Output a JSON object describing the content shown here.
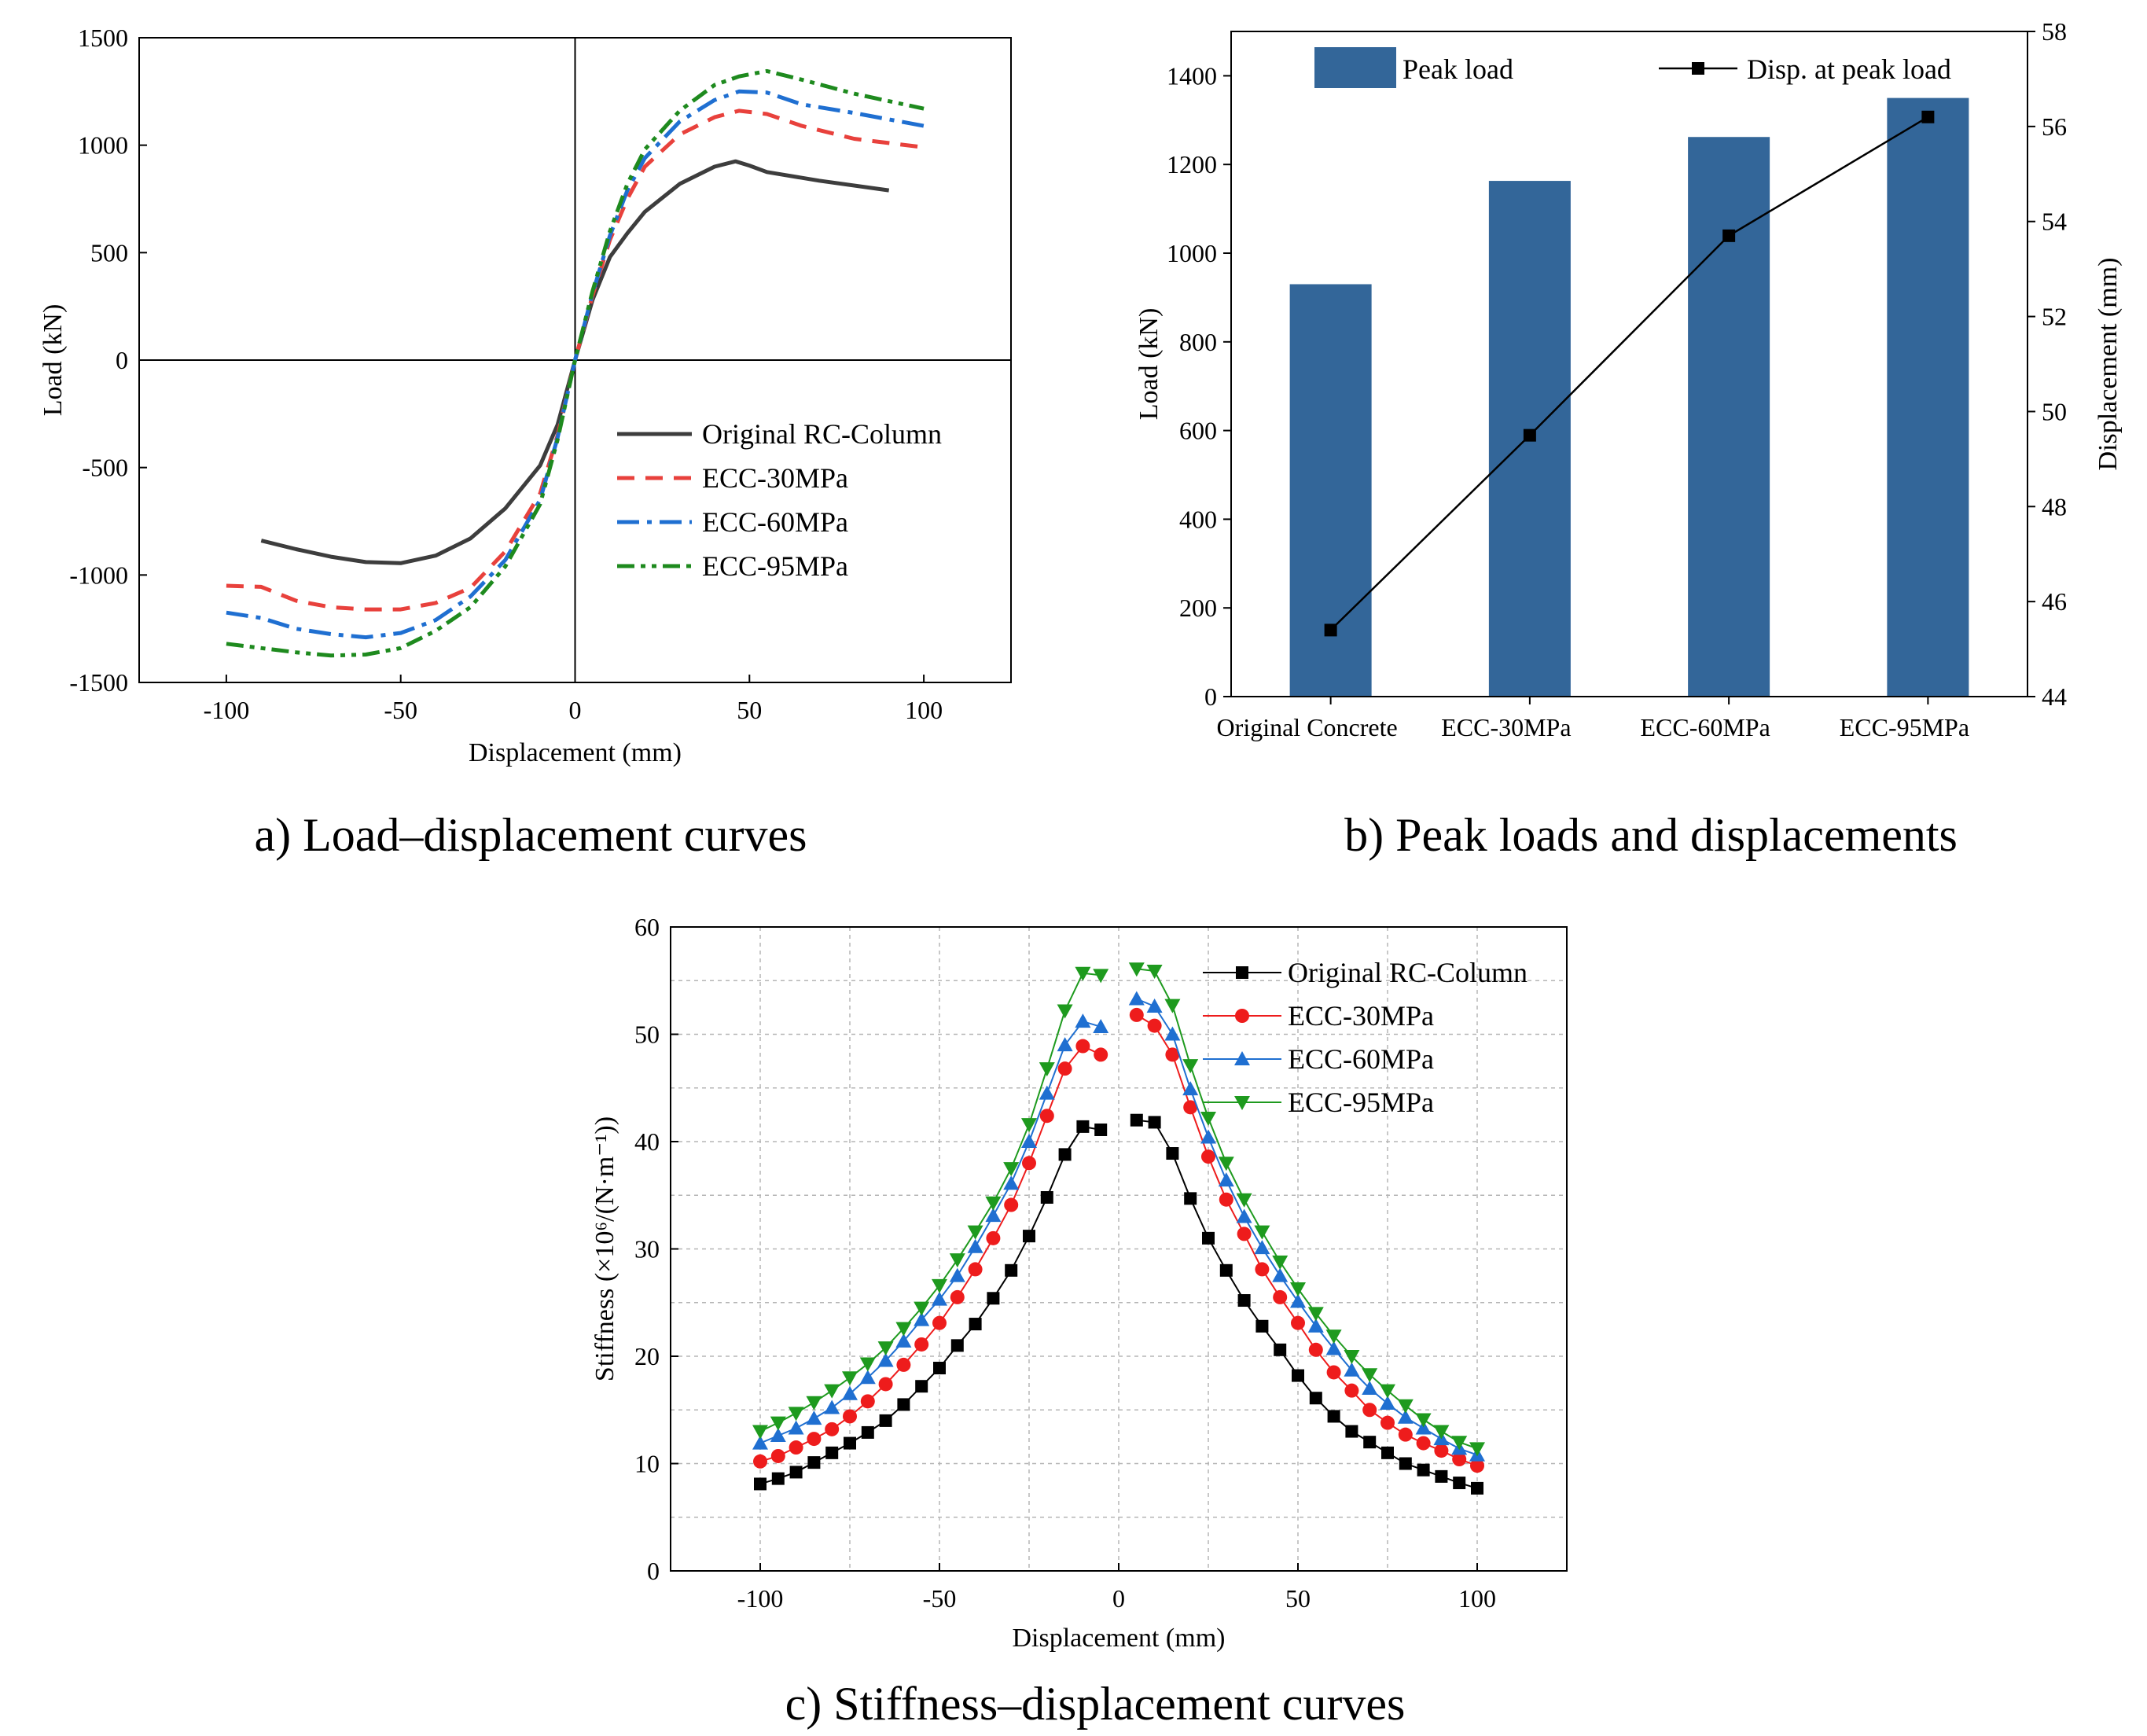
{
  "chart_data": [
    {
      "id": "a",
      "type": "line",
      "caption": "a) Load–displacement curves",
      "xlabel": "Displacement (mm)",
      "ylabel": "Load (kN)",
      "xlim": [
        -125,
        125
      ],
      "ylim": [
        -1500,
        1500
      ],
      "xticks": [
        -100,
        -50,
        0,
        50,
        100
      ],
      "yticks": [
        -1500,
        -1000,
        -500,
        0,
        500,
        1000,
        1500
      ],
      "grid": false,
      "legend_position": "bottom-right",
      "series": [
        {
          "name": "Original RC-Column",
          "color": "#3d3d3d",
          "dash": "solid",
          "points": [
            [
              -90,
              -840
            ],
            [
              -80,
              -880
            ],
            [
              -70,
              -915
            ],
            [
              -60,
              -940
            ],
            [
              -50,
              -945
            ],
            [
              -40,
              -910
            ],
            [
              -30,
              -830
            ],
            [
              -20,
              -690
            ],
            [
              -10,
              -490
            ],
            [
              -5,
              -300
            ],
            [
              0,
              0
            ],
            [
              5,
              280
            ],
            [
              10,
              480
            ],
            [
              15,
              590
            ],
            [
              20,
              690
            ],
            [
              30,
              820
            ],
            [
              40,
              900
            ],
            [
              46,
              925
            ],
            [
              50,
              905
            ],
            [
              55,
              875
            ],
            [
              70,
              835
            ],
            [
              90,
              790
            ]
          ]
        },
        {
          "name": "ECC-30MPa",
          "color": "#e8413c",
          "dash": "22,14",
          "points": [
            [
              -100,
              -1050
            ],
            [
              -90,
              -1055
            ],
            [
              -80,
              -1120
            ],
            [
              -70,
              -1150
            ],
            [
              -60,
              -1160
            ],
            [
              -50,
              -1160
            ],
            [
              -40,
              -1130
            ],
            [
              -30,
              -1060
            ],
            [
              -20,
              -890
            ],
            [
              -10,
              -620
            ],
            [
              -5,
              -350
            ],
            [
              0,
              0
            ],
            [
              5,
              300
            ],
            [
              10,
              560
            ],
            [
              15,
              750
            ],
            [
              20,
              900
            ],
            [
              30,
              1050
            ],
            [
              40,
              1130
            ],
            [
              47,
              1160
            ],
            [
              55,
              1145
            ],
            [
              65,
              1090
            ],
            [
              80,
              1030
            ],
            [
              100,
              990
            ]
          ]
        },
        {
          "name": "ECC-60MPa",
          "color": "#1f6fd1",
          "dash": "28,10,6,10",
          "points": [
            [
              -100,
              -1175
            ],
            [
              -90,
              -1200
            ],
            [
              -80,
              -1250
            ],
            [
              -70,
              -1275
            ],
            [
              -60,
              -1290
            ],
            [
              -50,
              -1270
            ],
            [
              -40,
              -1210
            ],
            [
              -30,
              -1100
            ],
            [
              -20,
              -930
            ],
            [
              -10,
              -650
            ],
            [
              -5,
              -360
            ],
            [
              0,
              0
            ],
            [
              5,
              310
            ],
            [
              10,
              580
            ],
            [
              15,
              790
            ],
            [
              20,
              940
            ],
            [
              30,
              1110
            ],
            [
              40,
              1210
            ],
            [
              47,
              1250
            ],
            [
              55,
              1245
            ],
            [
              65,
              1190
            ],
            [
              80,
              1150
            ],
            [
              100,
              1090
            ]
          ]
        },
        {
          "name": "ECC-95MPa",
          "color": "#1e8a1e",
          "dash": "22,8,6,8,6,8",
          "points": [
            [
              -100,
              -1320
            ],
            [
              -90,
              -1340
            ],
            [
              -80,
              -1360
            ],
            [
              -70,
              -1375
            ],
            [
              -60,
              -1370
            ],
            [
              -50,
              -1340
            ],
            [
              -40,
              -1260
            ],
            [
              -30,
              -1150
            ],
            [
              -20,
              -960
            ],
            [
              -10,
              -670
            ],
            [
              -5,
              -370
            ],
            [
              0,
              0
            ],
            [
              5,
              320
            ],
            [
              10,
              600
            ],
            [
              15,
              820
            ],
            [
              20,
              980
            ],
            [
              30,
              1160
            ],
            [
              40,
              1280
            ],
            [
              47,
              1320
            ],
            [
              55,
              1345
            ],
            [
              65,
              1305
            ],
            [
              80,
              1240
            ],
            [
              100,
              1170
            ]
          ]
        }
      ]
    },
    {
      "id": "b",
      "type": "bar",
      "caption": "b) Peak loads and displacements",
      "categories": [
        "Original Concrete",
        "ECC-30MPa",
        "ECC-60MPa",
        "ECC-95MPa"
      ],
      "ylabel": "Load (kN)",
      "y2label": "Displacement (mm)",
      "ylim": [
        0,
        1500
      ],
      "y2lim": [
        44,
        58
      ],
      "yticks": [
        0,
        200,
        400,
        600,
        800,
        1000,
        1200,
        1400
      ],
      "y2ticks": [
        44,
        46,
        48,
        50,
        52,
        54,
        56,
        58
      ],
      "legend_position": "top",
      "series": [
        {
          "name": "Peak load",
          "type": "bar",
          "color": "#336699",
          "values": [
            930,
            1163,
            1262,
            1350
          ]
        },
        {
          "name": "Disp. at peak load",
          "type": "line",
          "axis": "right",
          "color": "#000000",
          "values": [
            45.4,
            49.5,
            53.7,
            56.2
          ]
        }
      ]
    },
    {
      "id": "c",
      "type": "scatter",
      "caption": "c) Stiffness–displacement curves",
      "xlabel": "Displacement (mm)",
      "ylabel": "Stiffness (×10⁶/(N·m⁻¹))",
      "xlim": [
        -125,
        125
      ],
      "ylim": [
        0,
        60
      ],
      "xticks": [
        -100,
        -50,
        0,
        50,
        100
      ],
      "yticks": [
        0,
        10,
        20,
        30,
        40,
        50,
        60
      ],
      "grid": true,
      "legend_position": "top-right",
      "x": [
        -100,
        -95,
        -90,
        -85,
        -80,
        -75,
        -70,
        -65,
        -60,
        -55,
        -50,
        -45,
        -40,
        -35,
        -30,
        -25,
        -20,
        -15,
        -10,
        -5,
        5,
        10,
        15,
        20,
        25,
        30,
        35,
        40,
        45,
        50,
        55,
        60,
        65,
        70,
        75,
        80,
        85,
        90,
        95,
        100
      ],
      "series": [
        {
          "name": "Original RC-Column",
          "color": "#000000",
          "marker": "square",
          "values": [
            8.1,
            8.6,
            9.2,
            10.1,
            11.0,
            11.9,
            12.9,
            14.0,
            15.5,
            17.2,
            18.9,
            21.0,
            23.0,
            25.4,
            28.0,
            31.2,
            34.8,
            38.8,
            41.4,
            41.1,
            42.0,
            41.8,
            38.9,
            34.7,
            31.0,
            28.0,
            25.2,
            22.8,
            20.6,
            18.2,
            16.1,
            14.4,
            13.0,
            12.0,
            11.0,
            10.0,
            9.4,
            8.8,
            8.2,
            7.7
          ]
        },
        {
          "name": "ECC-30MPa",
          "color": "#ee1c1c",
          "marker": "circle",
          "values": [
            10.2,
            10.7,
            11.5,
            12.3,
            13.2,
            14.4,
            15.8,
            17.4,
            19.2,
            21.1,
            23.1,
            25.5,
            28.1,
            31.0,
            34.1,
            38.0,
            42.4,
            46.8,
            48.9,
            48.1,
            51.8,
            50.8,
            48.1,
            43.2,
            38.6,
            34.6,
            31.4,
            28.1,
            25.5,
            23.1,
            20.6,
            18.5,
            16.8,
            15.0,
            13.8,
            12.7,
            11.9,
            11.2,
            10.4,
            9.8
          ]
        },
        {
          "name": "ECC-60MPa",
          "color": "#1f6fd1",
          "marker": "triangle-up",
          "values": [
            11.9,
            12.6,
            13.3,
            14.2,
            15.2,
            16.5,
            18.0,
            19.6,
            21.4,
            23.4,
            25.3,
            27.5,
            30.2,
            33.1,
            36.1,
            40.0,
            44.5,
            49.0,
            51.2,
            50.7,
            53.3,
            52.6,
            50.0,
            44.9,
            40.4,
            36.4,
            33.0,
            30.1,
            27.5,
            25.1,
            22.8,
            20.7,
            18.7,
            17.0,
            15.6,
            14.3,
            13.3,
            12.3,
            11.4,
            10.8
          ]
        },
        {
          "name": "ECC-95MPa",
          "color": "#1e9a1e",
          "marker": "triangle-down",
          "values": [
            13.0,
            13.8,
            14.7,
            15.7,
            16.8,
            18.0,
            19.3,
            20.8,
            22.6,
            24.5,
            26.6,
            29.0,
            31.6,
            34.3,
            37.5,
            41.6,
            46.8,
            52.2,
            55.7,
            55.5,
            56.1,
            55.9,
            52.7,
            47.1,
            42.2,
            38.0,
            34.6,
            31.6,
            28.8,
            26.3,
            24.0,
            21.9,
            20.0,
            18.3,
            16.8,
            15.4,
            14.1,
            13.0,
            12.0,
            11.4
          ]
        }
      ]
    }
  ]
}
